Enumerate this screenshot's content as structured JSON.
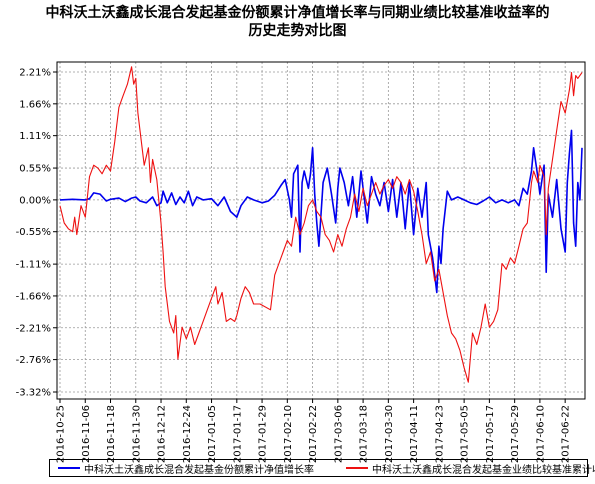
{
  "chart_data": {
    "type": "line",
    "title_lines": [
      "中科沃土沃鑫成长混合发起基金份额累计净值增长率与同期业绩比较基准收益率的",
      "历史走势对比图"
    ],
    "y_ticks": [
      "2.21%",
      "1.66%",
      "1.11%",
      "0.55%",
      "0.00%",
      "-0.55%",
      "-1.11%",
      "-1.66%",
      "-2.21%",
      "-2.76%",
      "-3.32%"
    ],
    "ylim": [
      -3.32,
      2.21
    ],
    "x_ticks": [
      "2016-10-25",
      "2016-11-06",
      "2016-11-18",
      "2016-11-30",
      "2016-12-12",
      "2016-12-24",
      "2017-01-05",
      "2017-01-17",
      "2017-01-29",
      "2017-02-10",
      "2017-02-22",
      "2017-03-06",
      "2017-03-18",
      "2017-03-30",
      "2017-04-11",
      "2017-04-23",
      "2017-05-05",
      "2017-05-17",
      "2017-05-29",
      "2017-06-10",
      "2017-06-22"
    ],
    "xlim": [
      "2016-10-25",
      "2017-06-30"
    ],
    "grid": true,
    "legend_position": "bottom",
    "series": [
      {
        "name": "中科沃土沃鑫成长混合发起基金份额累计净值增长率",
        "color": "#0000ee",
        "points": [
          [
            "2016-10-25",
            0.0
          ],
          [
            "2016-10-31",
            0.01
          ],
          [
            "2016-11-06",
            0.0
          ],
          [
            "2016-11-08",
            0.02
          ],
          [
            "2016-11-10",
            0.12
          ],
          [
            "2016-11-13",
            0.1
          ],
          [
            "2016-11-16",
            -0.02
          ],
          [
            "2016-11-18",
            0.01
          ],
          [
            "2016-11-22",
            0.03
          ],
          [
            "2016-11-25",
            -0.03
          ],
          [
            "2016-11-28",
            0.03
          ],
          [
            "2016-11-30",
            0.05
          ],
          [
            "2016-12-02",
            -0.02
          ],
          [
            "2016-12-05",
            -0.05
          ],
          [
            "2016-12-08",
            0.05
          ],
          [
            "2016-12-10",
            -0.1
          ],
          [
            "2016-12-12",
            -0.05
          ],
          [
            "2016-12-13",
            0.15
          ],
          [
            "2016-12-15",
            -0.05
          ],
          [
            "2016-12-17",
            0.12
          ],
          [
            "2016-12-19",
            -0.08
          ],
          [
            "2016-12-21",
            0.05
          ],
          [
            "2016-12-23",
            -0.05
          ],
          [
            "2016-12-25",
            0.15
          ],
          [
            "2016-12-27",
            -0.1
          ],
          [
            "2016-12-29",
            0.05
          ],
          [
            "2017-01-01",
            0.0
          ],
          [
            "2017-01-05",
            0.02
          ],
          [
            "2017-01-08",
            -0.1
          ],
          [
            "2017-01-11",
            0.05
          ],
          [
            "2017-01-14",
            -0.2
          ],
          [
            "2017-01-17",
            -0.3
          ],
          [
            "2017-01-19",
            -0.1
          ],
          [
            "2017-01-22",
            0.05
          ],
          [
            "2017-01-25",
            0.0
          ],
          [
            "2017-01-29",
            -0.05
          ],
          [
            "2017-02-01",
            -0.02
          ],
          [
            "2017-02-04",
            0.08
          ],
          [
            "2017-02-07",
            0.25
          ],
          [
            "2017-02-09",
            0.35
          ],
          [
            "2017-02-11",
            0.0
          ],
          [
            "2017-02-12",
            -0.3
          ],
          [
            "2017-02-13",
            0.45
          ],
          [
            "2017-02-15",
            0.6
          ],
          [
            "2017-02-16",
            -0.9
          ],
          [
            "2017-02-17",
            0.3
          ],
          [
            "2017-02-18",
            0.5
          ],
          [
            "2017-02-20",
            0.2
          ],
          [
            "2017-02-21",
            0.45
          ],
          [
            "2017-02-22",
            0.9
          ],
          [
            "2017-02-23",
            0.1
          ],
          [
            "2017-02-24",
            -0.4
          ],
          [
            "2017-02-25",
            -0.8
          ],
          [
            "2017-02-27",
            0.3
          ],
          [
            "2017-03-01",
            0.55
          ],
          [
            "2017-03-03",
            0.1
          ],
          [
            "2017-03-05",
            -0.4
          ],
          [
            "2017-03-06",
            0.2
          ],
          [
            "2017-03-07",
            0.55
          ],
          [
            "2017-03-09",
            0.3
          ],
          [
            "2017-03-11",
            -0.1
          ],
          [
            "2017-03-13",
            0.4
          ],
          [
            "2017-03-15",
            -0.3
          ],
          [
            "2017-03-17",
            0.5
          ],
          [
            "2017-03-18",
            0.2
          ],
          [
            "2017-03-20",
            -0.4
          ],
          [
            "2017-03-22",
            0.4
          ],
          [
            "2017-03-24",
            0.1
          ],
          [
            "2017-03-26",
            -0.1
          ],
          [
            "2017-03-28",
            0.3
          ],
          [
            "2017-03-30",
            -0.2
          ],
          [
            "2017-04-01",
            0.35
          ],
          [
            "2017-04-03",
            -0.3
          ],
          [
            "2017-04-05",
            0.3
          ],
          [
            "2017-04-07",
            -0.5
          ],
          [
            "2017-04-09",
            0.3
          ],
          [
            "2017-04-11",
            -0.6
          ],
          [
            "2017-04-13",
            0.2
          ],
          [
            "2017-04-15",
            -0.3
          ],
          [
            "2017-04-17",
            0.3
          ],
          [
            "2017-04-18",
            -0.6
          ],
          [
            "2017-04-20",
            -1.0
          ],
          [
            "2017-04-21",
            -1.3
          ],
          [
            "2017-04-22",
            -1.6
          ],
          [
            "2017-04-23",
            -0.8
          ],
          [
            "2017-04-24",
            -1.1
          ],
          [
            "2017-04-25",
            -0.5
          ],
          [
            "2017-04-27",
            0.15
          ],
          [
            "2017-04-29",
            0.0
          ],
          [
            "2017-05-02",
            0.05
          ],
          [
            "2017-05-05",
            0.0
          ],
          [
            "2017-05-08",
            -0.05
          ],
          [
            "2017-05-11",
            -0.08
          ],
          [
            "2017-05-14",
            -0.02
          ],
          [
            "2017-05-17",
            0.05
          ],
          [
            "2017-05-20",
            -0.05
          ],
          [
            "2017-05-23",
            0.0
          ],
          [
            "2017-05-26",
            -0.05
          ],
          [
            "2017-05-29",
            0.0
          ],
          [
            "2017-05-31",
            -0.1
          ],
          [
            "2017-06-02",
            0.2
          ],
          [
            "2017-06-04",
            0.1
          ],
          [
            "2017-06-06",
            0.5
          ],
          [
            "2017-06-07",
            0.9
          ],
          [
            "2017-06-09",
            0.4
          ],
          [
            "2017-06-10",
            0.1
          ],
          [
            "2017-06-12",
            0.6
          ],
          [
            "2017-06-13",
            -1.25
          ],
          [
            "2017-06-14",
            0.1
          ],
          [
            "2017-06-16",
            -0.3
          ],
          [
            "2017-06-18",
            0.35
          ],
          [
            "2017-06-20",
            -0.5
          ],
          [
            "2017-06-22",
            -0.9
          ],
          [
            "2017-06-23",
            0.3
          ],
          [
            "2017-06-24",
            0.8
          ],
          [
            "2017-06-25",
            1.2
          ],
          [
            "2017-06-26",
            -0.4
          ],
          [
            "2017-06-27",
            -0.8
          ],
          [
            "2017-06-28",
            0.3
          ],
          [
            "2017-06-29",
            0.0
          ],
          [
            "2017-06-30",
            0.9
          ]
        ]
      },
      {
        "name": "中科沃土沃鑫成长混合发起基金业绩比较基准累计收益率",
        "color": "#ee1111",
        "points": [
          [
            "2016-10-25",
            -0.1
          ],
          [
            "2016-10-27",
            -0.4
          ],
          [
            "2016-10-29",
            -0.5
          ],
          [
            "2016-10-31",
            -0.55
          ],
          [
            "2016-11-01",
            -0.3
          ],
          [
            "2016-11-02",
            -0.6
          ],
          [
            "2016-11-04",
            -0.1
          ],
          [
            "2016-11-06",
            -0.3
          ],
          [
            "2016-11-08",
            0.4
          ],
          [
            "2016-11-10",
            0.6
          ],
          [
            "2016-11-12",
            0.55
          ],
          [
            "2016-11-14",
            0.45
          ],
          [
            "2016-11-16",
            0.6
          ],
          [
            "2016-11-18",
            0.5
          ],
          [
            "2016-11-20",
            1.0
          ],
          [
            "2016-11-22",
            1.6
          ],
          [
            "2016-11-24",
            1.8
          ],
          [
            "2016-11-26",
            2.0
          ],
          [
            "2016-11-28",
            2.3
          ],
          [
            "2016-11-29",
            2.0
          ],
          [
            "2016-11-30",
            2.1
          ],
          [
            "2016-12-01",
            1.5
          ],
          [
            "2016-12-02",
            1.2
          ],
          [
            "2016-12-04",
            0.6
          ],
          [
            "2016-12-06",
            0.9
          ],
          [
            "2016-12-07",
            0.3
          ],
          [
            "2016-12-08",
            0.7
          ],
          [
            "2016-12-10",
            0.35
          ],
          [
            "2016-12-12",
            -0.4
          ],
          [
            "2016-12-13",
            -0.9
          ],
          [
            "2016-12-14",
            -1.5
          ],
          [
            "2016-12-16",
            -2.1
          ],
          [
            "2016-12-18",
            -2.3
          ],
          [
            "2016-12-19",
            -2.0
          ],
          [
            "2016-12-20",
            -2.75
          ],
          [
            "2016-12-22",
            -2.2
          ],
          [
            "2016-12-24",
            -2.4
          ],
          [
            "2016-12-26",
            -2.2
          ],
          [
            "2016-12-28",
            -2.5
          ],
          [
            "2016-12-30",
            -2.3
          ],
          [
            "2017-01-01",
            -2.1
          ],
          [
            "2017-01-03",
            -1.9
          ],
          [
            "2017-01-05",
            -1.7
          ],
          [
            "2017-01-07",
            -1.5
          ],
          [
            "2017-01-08",
            -1.8
          ],
          [
            "2017-01-10",
            -1.6
          ],
          [
            "2017-01-12",
            -2.1
          ],
          [
            "2017-01-14",
            -2.05
          ],
          [
            "2017-01-16",
            -2.1
          ],
          [
            "2017-01-17",
            -2.0
          ],
          [
            "2017-01-19",
            -1.7
          ],
          [
            "2017-01-21",
            -1.5
          ],
          [
            "2017-01-23",
            -1.6
          ],
          [
            "2017-01-25",
            -1.8
          ],
          [
            "2017-01-28",
            -1.8
          ],
          [
            "2017-02-02",
            -1.9
          ],
          [
            "2017-02-04",
            -1.3
          ],
          [
            "2017-02-06",
            -1.1
          ],
          [
            "2017-02-08",
            -0.9
          ],
          [
            "2017-02-10",
            -0.7
          ],
          [
            "2017-02-12",
            -0.8
          ],
          [
            "2017-02-14",
            -0.3
          ],
          [
            "2017-02-16",
            -0.6
          ],
          [
            "2017-02-18",
            -0.4
          ],
          [
            "2017-02-20",
            -0.1
          ],
          [
            "2017-02-22",
            0.0
          ],
          [
            "2017-02-24",
            -0.2
          ],
          [
            "2017-02-26",
            -0.3
          ],
          [
            "2017-02-28",
            -0.6
          ],
          [
            "2017-03-02",
            -0.7
          ],
          [
            "2017-03-04",
            -0.9
          ],
          [
            "2017-03-06",
            -0.6
          ],
          [
            "2017-03-08",
            -0.8
          ],
          [
            "2017-03-10",
            -0.5
          ],
          [
            "2017-03-12",
            -0.3
          ],
          [
            "2017-03-14",
            0.1
          ],
          [
            "2017-03-16",
            -0.2
          ],
          [
            "2017-03-18",
            0.2
          ],
          [
            "2017-03-20",
            -0.1
          ],
          [
            "2017-03-22",
            0.1
          ],
          [
            "2017-03-24",
            0.3
          ],
          [
            "2017-03-26",
            0.1
          ],
          [
            "2017-03-28",
            0.25
          ],
          [
            "2017-03-30",
            0.35
          ],
          [
            "2017-04-01",
            0.2
          ],
          [
            "2017-04-03",
            0.4
          ],
          [
            "2017-04-05",
            0.3
          ],
          [
            "2017-04-07",
            0.1
          ],
          [
            "2017-04-09",
            0.35
          ],
          [
            "2017-04-11",
            0.15
          ],
          [
            "2017-04-13",
            -0.2
          ],
          [
            "2017-04-15",
            -0.6
          ],
          [
            "2017-04-17",
            -1.1
          ],
          [
            "2017-04-19",
            -0.9
          ],
          [
            "2017-04-21",
            -1.4
          ],
          [
            "2017-04-23",
            -1.2
          ],
          [
            "2017-04-25",
            -1.6
          ],
          [
            "2017-04-27",
            -2.0
          ],
          [
            "2017-04-29",
            -2.3
          ],
          [
            "2017-05-01",
            -2.4
          ],
          [
            "2017-05-03",
            -2.6
          ],
          [
            "2017-05-05",
            -2.9
          ],
          [
            "2017-05-07",
            -3.15
          ],
          [
            "2017-05-09",
            -2.3
          ],
          [
            "2017-05-11",
            -2.5
          ],
          [
            "2017-05-13",
            -2.2
          ],
          [
            "2017-05-15",
            -1.8
          ],
          [
            "2017-05-17",
            -2.2
          ],
          [
            "2017-05-19",
            -2.1
          ],
          [
            "2017-05-21",
            -1.9
          ],
          [
            "2017-05-23",
            -1.1
          ],
          [
            "2017-05-25",
            -1.2
          ],
          [
            "2017-05-27",
            -1.0
          ],
          [
            "2017-05-29",
            -1.1
          ],
          [
            "2017-05-31",
            -0.8
          ],
          [
            "2017-06-02",
            -0.5
          ],
          [
            "2017-06-04",
            -0.4
          ],
          [
            "2017-06-06",
            0.3
          ],
          [
            "2017-06-07",
            0.5
          ],
          [
            "2017-06-09",
            0.3
          ],
          [
            "2017-06-10",
            0.6
          ],
          [
            "2017-06-12",
            0.4
          ],
          [
            "2017-06-13",
            -0.6
          ],
          [
            "2017-06-14",
            0.2
          ],
          [
            "2017-06-16",
            0.7
          ],
          [
            "2017-06-18",
            1.2
          ],
          [
            "2017-06-20",
            1.7
          ],
          [
            "2017-06-22",
            1.5
          ],
          [
            "2017-06-24",
            1.9
          ],
          [
            "2017-06-25",
            2.2
          ],
          [
            "2017-06-26",
            1.8
          ],
          [
            "2017-06-27",
            2.15
          ],
          [
            "2017-06-28",
            2.1
          ],
          [
            "2017-06-30",
            2.2
          ]
        ]
      }
    ]
  }
}
